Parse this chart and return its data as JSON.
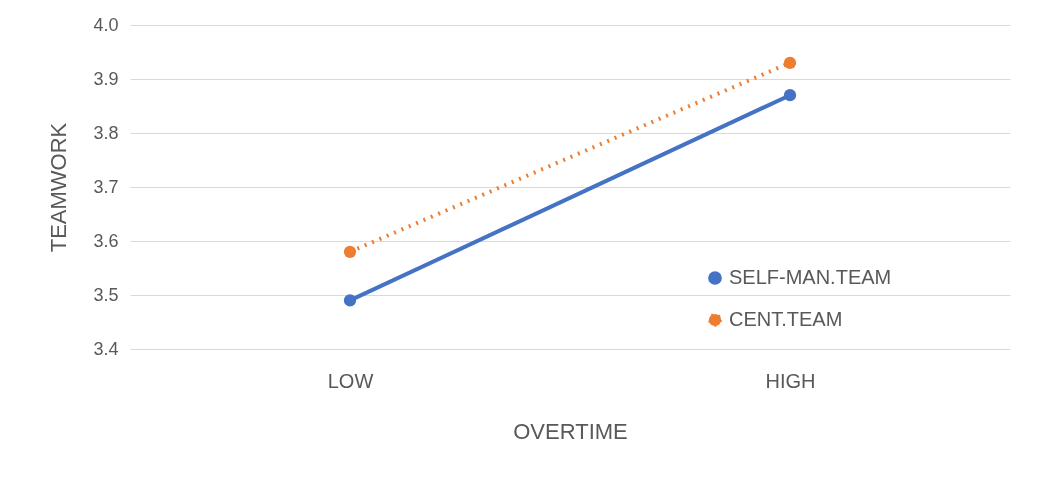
{
  "chart_data": {
    "type": "line",
    "xlabel": "OVERTIME",
    "ylabel": "TEAMWORK",
    "categories": [
      "LOW",
      "HIGH"
    ],
    "series": [
      {
        "name": "SELF-MAN.TEAM",
        "color": "#4472c4",
        "values": [
          3.49,
          3.87
        ],
        "line_style": "solid"
      },
      {
        "name": "CENT.TEAM",
        "color": "#ed7d31",
        "values": [
          3.58,
          3.93
        ],
        "line_style": "dotted"
      }
    ],
    "ylim": [
      3.4,
      4.0
    ],
    "yticks": [
      3.4,
      3.5,
      3.6,
      3.7,
      3.8,
      3.9,
      {
        "value": 4.0,
        "label": "4.0"
      }
    ],
    "grid": "y",
    "legend": "right",
    "marker": "circle"
  }
}
